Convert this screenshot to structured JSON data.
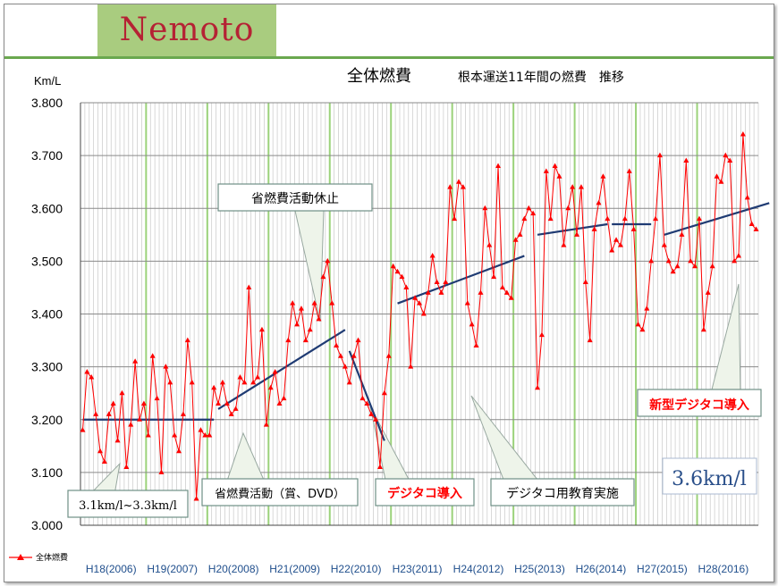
{
  "header": {
    "logo": "Nemoto"
  },
  "chart_data": {
    "type": "line",
    "title": "全体燃費",
    "subtitle": "根本運送11年間の燃費　推移",
    "ylabel": "Km/L",
    "ylim": [
      3.0,
      3.8
    ],
    "yticks": [
      "3.000",
      "3.100",
      "3.200",
      "3.300",
      "3.400",
      "3.500",
      "3.600",
      "3.700",
      "3.800"
    ],
    "grid": true,
    "legend": {
      "position": "bottom-left",
      "label": "全体燃費"
    },
    "x_year_labels": [
      "H18(2006)",
      "H19(2007)",
      "H20(2008)",
      "H21(2009)",
      "H22(2010)",
      "H23(2011)",
      "H24(2012)",
      "H25(2013)",
      "H26(2014)",
      "H27(2015)",
      "H28(2016)"
    ],
    "series": [
      {
        "name": "全体燃費",
        "color": "#ff0000",
        "marker": "triangle",
        "values": [
          3.18,
          3.29,
          3.28,
          3.21,
          3.14,
          3.12,
          3.21,
          3.23,
          3.16,
          3.25,
          3.11,
          3.19,
          3.31,
          3.2,
          3.23,
          3.17,
          3.32,
          3.24,
          3.1,
          3.3,
          3.27,
          3.17,
          3.14,
          3.21,
          3.35,
          3.27,
          3.05,
          3.18,
          3.17,
          3.17,
          3.26,
          3.23,
          3.27,
          3.23,
          3.21,
          3.22,
          3.28,
          3.27,
          3.45,
          3.27,
          3.28,
          3.37,
          3.19,
          3.26,
          3.29,
          3.23,
          3.24,
          3.35,
          3.42,
          3.38,
          3.41,
          3.35,
          3.37,
          3.42,
          3.39,
          3.47,
          3.5,
          3.42,
          3.34,
          3.32,
          3.3,
          3.27,
          3.32,
          3.35,
          3.24,
          3.23,
          3.21,
          3.2,
          3.11,
          3.25,
          3.32,
          3.49,
          3.48,
          3.47,
          3.45,
          3.3,
          3.43,
          3.42,
          3.4,
          3.44,
          3.51,
          3.46,
          3.44,
          3.46,
          3.64,
          3.58,
          3.65,
          3.64,
          3.42,
          3.38,
          3.34,
          3.44,
          3.6,
          3.53,
          3.47,
          3.68,
          3.45,
          3.44,
          3.43,
          3.54,
          3.55,
          3.58,
          3.6,
          3.59,
          3.26,
          3.36,
          3.67,
          3.58,
          3.68,
          3.66,
          3.53,
          3.6,
          3.64,
          3.55,
          3.64,
          3.46,
          3.35,
          3.56,
          3.61,
          3.66,
          3.58,
          3.52,
          3.54,
          3.53,
          3.58,
          3.67,
          3.56,
          3.38,
          3.37,
          3.41,
          3.5,
          3.58,
          3.7,
          3.53,
          3.5,
          3.48,
          3.49,
          3.55,
          3.69,
          3.5,
          3.49,
          3.58,
          3.37,
          3.44,
          3.49,
          3.66,
          3.65,
          3.7,
          3.69,
          3.5,
          3.51,
          3.74,
          3.62,
          3.57,
          3.56
        ]
      }
    ],
    "trendlines": [
      {
        "from": [
          0,
          3.2
        ],
        "to": [
          30,
          3.2
        ]
      },
      {
        "from": [
          31,
          3.22
        ],
        "to": [
          60,
          3.37
        ]
      },
      {
        "from": [
          61,
          3.33
        ],
        "to": [
          69,
          3.16
        ]
      },
      {
        "from": [
          72,
          3.42
        ],
        "to": [
          101,
          3.51
        ]
      },
      {
        "from": [
          104,
          3.55
        ],
        "to": [
          120,
          3.57
        ]
      },
      {
        "from": [
          121,
          3.57
        ],
        "to": [
          130,
          3.57
        ]
      },
      {
        "from": [
          133,
          3.55
        ],
        "to": [
          157,
          3.61
        ]
      }
    ],
    "annotations": [
      {
        "text": "省燃費活動休止",
        "emphasis": false
      },
      {
        "text": "省燃費活動（賞、DVD）",
        "emphasis": false
      },
      {
        "text": "3.1km/l~3.3km/l",
        "emphasis": false
      },
      {
        "text": "デジタコ導入",
        "emphasis": true
      },
      {
        "text": "デジタコ用教育実施",
        "emphasis": false
      },
      {
        "text": "新型デジタコ導入",
        "emphasis": true
      },
      {
        "text": "3.6km/l",
        "emphasis": false
      }
    ]
  }
}
